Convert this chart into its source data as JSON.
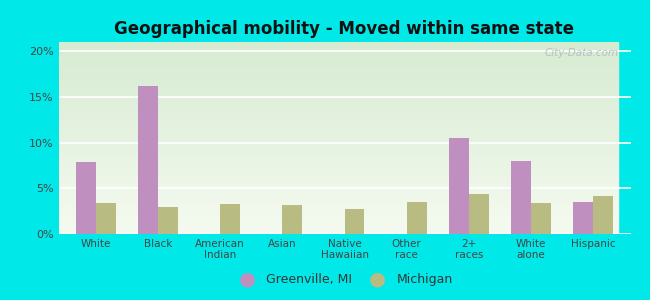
{
  "title": "Geographical mobility - Moved within same state",
  "categories": [
    "White",
    "Black",
    "American\nIndian",
    "Asian",
    "Native\nHawaiian",
    "Other\nrace",
    "2+\nraces",
    "White\nalone",
    "Hispanic"
  ],
  "greenville_values": [
    7.9,
    16.2,
    0.0,
    0.0,
    0.0,
    0.0,
    10.5,
    8.0,
    3.5
  ],
  "michigan_values": [
    3.4,
    3.0,
    3.3,
    3.2,
    2.7,
    3.5,
    4.4,
    3.4,
    4.2
  ],
  "greenville_color": "#bf8fbf",
  "michigan_color": "#b8bc82",
  "ylim_max": 0.21,
  "yticks": [
    0.0,
    0.05,
    0.1,
    0.15,
    0.2
  ],
  "ytick_labels": [
    "0%",
    "5%",
    "10%",
    "15%",
    "20%"
  ],
  "legend_greenville": "Greenville, MI",
  "legend_michigan": "Michigan",
  "bg_outer": "#00e8e8",
  "watermark": "City-Data.com",
  "bar_width": 0.32,
  "chart_bg_top": "#f4f8f0",
  "chart_bg_bottom": "#d8ecd0"
}
